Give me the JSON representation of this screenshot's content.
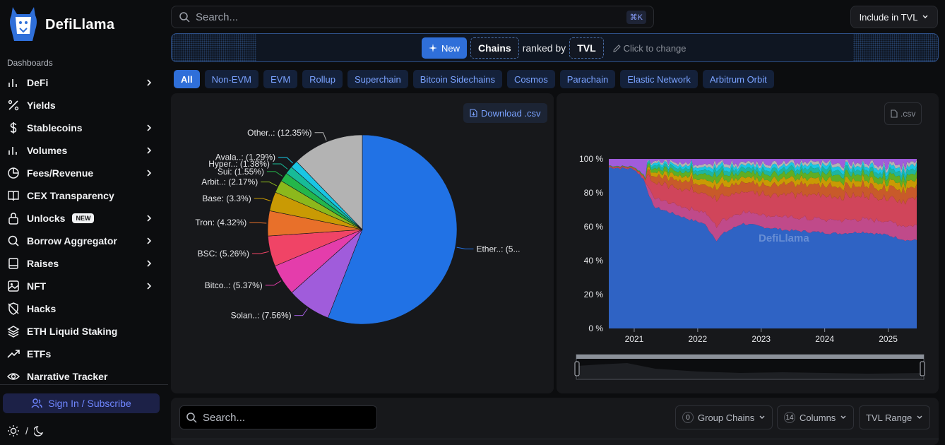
{
  "app": {
    "name": "DefiLlama"
  },
  "sidebar": {
    "section_label": "Dashboards",
    "items": [
      {
        "label": "DeFi",
        "icon": "bar-chart-icon",
        "chevron": true
      },
      {
        "label": "Yields",
        "icon": "percent-icon",
        "chevron": false
      },
      {
        "label": "Stablecoins",
        "icon": "dollar-icon",
        "chevron": true
      },
      {
        "label": "Volumes",
        "icon": "bar-chart-icon",
        "chevron": true
      },
      {
        "label": "Fees/Revenue",
        "icon": "pie-chart-icon",
        "chevron": true
      },
      {
        "label": "CEX Transparency",
        "icon": "book-icon",
        "chevron": false
      },
      {
        "label": "Unlocks",
        "icon": "lock-icon",
        "chevron": true,
        "badge": "NEW"
      },
      {
        "label": "Borrow Aggregator",
        "icon": "search-icon",
        "chevron": true
      },
      {
        "label": "Raises",
        "icon": "notebook-icon",
        "chevron": true
      },
      {
        "label": "NFT",
        "icon": "image-icon",
        "chevron": true
      },
      {
        "label": "Hacks",
        "icon": "shield-off-icon",
        "chevron": false
      },
      {
        "label": "ETH Liquid Staking",
        "icon": "layers-icon",
        "chevron": false
      },
      {
        "label": "ETFs",
        "icon": "trending-up-icon",
        "chevron": false
      },
      {
        "label": "Narrative Tracker",
        "icon": "eye-icon",
        "chevron": false
      }
    ],
    "signin_label": "Sign In / Subscribe",
    "theme_separator": "/"
  },
  "topbar": {
    "search_placeholder": "Search...",
    "shortcut": "⌘K",
    "include_tvl": "Include in TVL"
  },
  "banner": {
    "new_label": "New",
    "entity": "Chains",
    "ranked_by": "ranked by",
    "metric": "TVL",
    "hint": "Click to change"
  },
  "tabs": [
    "All",
    "Non-EVM",
    "EVM",
    "Rollup",
    "Superchain",
    "Bitcoin Sidechains",
    "Cosmos",
    "Parachain",
    "Elastic Network",
    "Arbitrum Orbit"
  ],
  "active_tab": "All",
  "pie_panel": {
    "download_label": "Download .csv"
  },
  "area_panel": {
    "csv_label": ".csv",
    "watermark": "DefiLlama"
  },
  "table_controls": {
    "search_placeholder": "Search...",
    "group_chains_count": "0",
    "group_chains_label": "Group Chains",
    "columns_count": "14",
    "columns_label": "Columns",
    "tvl_range_label": "TVL Range"
  },
  "colors": {
    "accent": "#2f6fd9",
    "link": "#7aa2ff",
    "background": "#0c0d0f",
    "panel": "#17181b"
  },
  "chart_data": [
    {
      "type": "pie",
      "slices": [
        {
          "label": "Ether..: (5...",
          "value": 56.5,
          "color": "#2172e5"
        },
        {
          "label": "Solan..: (7.56%)",
          "value": 7.56,
          "color": "#a05cdb"
        },
        {
          "label": "Bitco..: (5.37%)",
          "value": 5.37,
          "color": "#e43dab"
        },
        {
          "label": "BSC: (5.26%)",
          "value": 5.26,
          "color": "#f04466"
        },
        {
          "label": "Tron: (4.32%)",
          "value": 4.32,
          "color": "#e8702a"
        },
        {
          "label": "Base: (3.3%)",
          "value": 3.3,
          "color": "#c99a04"
        },
        {
          "label": "Arbit..: (2.17%)",
          "value": 2.17,
          "color": "#8cb81c"
        },
        {
          "label": "Sui: (1.55%)",
          "value": 1.55,
          "color": "#24b64a"
        },
        {
          "label": "Hyper..: (1.38%)",
          "value": 1.38,
          "color": "#17bb97"
        },
        {
          "label": "Avala..: (1.29%)",
          "value": 1.29,
          "color": "#19c6e4"
        },
        {
          "label": "Other..: (12.35%)",
          "value": 12.35,
          "color": "#b3b3b3"
        }
      ]
    },
    {
      "type": "area",
      "stacked_percent": true,
      "y_ticks": [
        "100 %",
        "80 %",
        "60 %",
        "40 %",
        "20 %",
        "0 %"
      ],
      "x_ticks": [
        "2021",
        "2022",
        "2023",
        "2024",
        "2025"
      ],
      "ylim": [
        0,
        100
      ],
      "series_colors": [
        "#2f63c4",
        "#c04a8a",
        "#d0455a",
        "#c85a2a",
        "#c99a04",
        "#5fae24",
        "#1eb6a0",
        "#19c6e4",
        "#b3b3b3",
        "#a05cdb"
      ],
      "ethereum_share_points": [
        {
          "x": 2020.6,
          "y": 95
        },
        {
          "x": 2021.0,
          "y": 94
        },
        {
          "x": 2021.15,
          "y": 88
        },
        {
          "x": 2021.3,
          "y": 72
        },
        {
          "x": 2021.6,
          "y": 68
        },
        {
          "x": 2021.9,
          "y": 64
        },
        {
          "x": 2022.1,
          "y": 62
        },
        {
          "x": 2022.3,
          "y": 52
        },
        {
          "x": 2022.4,
          "y": 56
        },
        {
          "x": 2022.7,
          "y": 62
        },
        {
          "x": 2023.0,
          "y": 60
        },
        {
          "x": 2023.4,
          "y": 58
        },
        {
          "x": 2023.8,
          "y": 57
        },
        {
          "x": 2024.2,
          "y": 56
        },
        {
          "x": 2024.6,
          "y": 57
        },
        {
          "x": 2025.0,
          "y": 55
        },
        {
          "x": 2025.3,
          "y": 52
        }
      ]
    }
  ]
}
